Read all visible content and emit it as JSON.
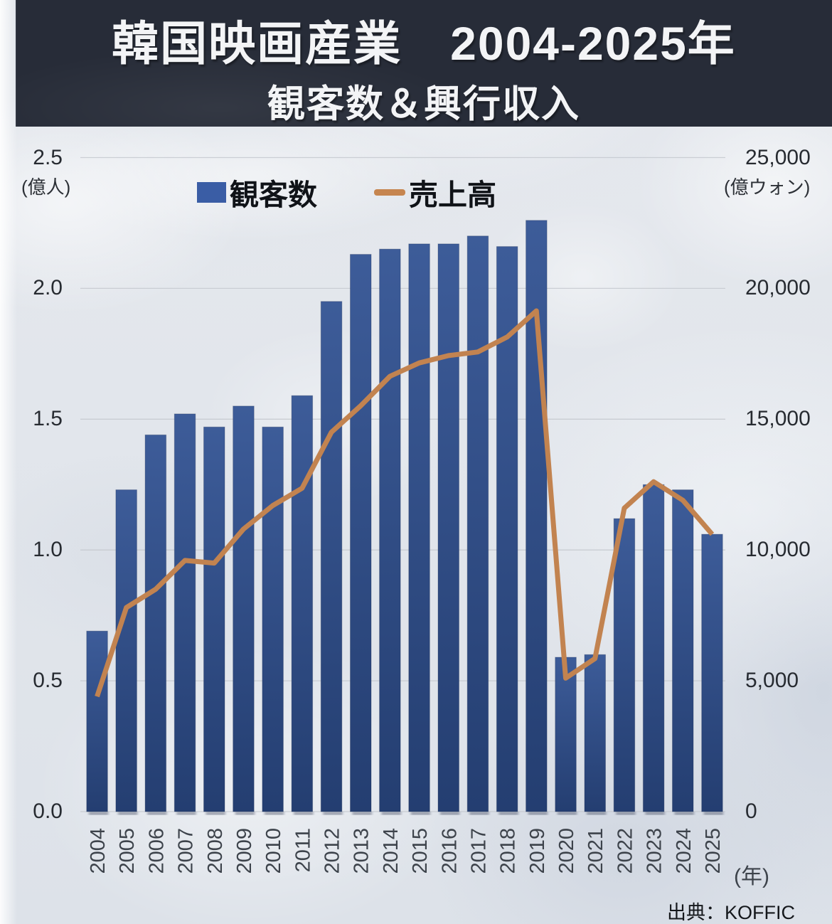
{
  "header": {
    "title_line1": "韓国映画産業　2004-2025年",
    "title_line2": "観客数＆興行収入"
  },
  "legend": {
    "bar_label": "観客数",
    "line_label": "売上高"
  },
  "axes": {
    "left": {
      "ticks": [
        "0.0",
        "0.5",
        "1.0",
        "1.5",
        "2.0",
        "2.5"
      ],
      "unit": "(億人)"
    },
    "right": {
      "ticks": [
        "0",
        "5,000",
        "10,000",
        "15,000",
        "20,000",
        "25,000"
      ],
      "unit": "(億ウォン)"
    },
    "x": {
      "unit": "(年)"
    }
  },
  "source": "出典：KOFFIC",
  "colors": {
    "bar_top": "#3d5c99",
    "bar_bottom": "#243e71",
    "line": "#c28350",
    "header_bg": "#272c38",
    "grid": "#c3c7cd"
  },
  "chart_data": {
    "type": "bar+line",
    "categories": [
      "2004",
      "2005",
      "2006",
      "2007",
      "2008",
      "2009",
      "2010",
      "2011",
      "2012",
      "2013",
      "2014",
      "2015",
      "2016",
      "2017",
      "2018",
      "2019",
      "2020",
      "2021",
      "2022",
      "2023",
      "2024",
      "2025"
    ],
    "series": [
      {
        "name": "観客数",
        "type": "bar",
        "axis": "left",
        "unit": "億人",
        "values": [
          0.69,
          1.23,
          1.44,
          1.52,
          1.47,
          1.55,
          1.47,
          1.59,
          1.95,
          2.13,
          2.15,
          2.17,
          2.17,
          2.2,
          2.16,
          2.26,
          0.59,
          0.6,
          1.12,
          1.25,
          1.23,
          1.06
        ]
      },
      {
        "name": "売上高",
        "type": "line",
        "axis": "right",
        "unit": "億ウォン",
        "values": [
          4400,
          7800,
          8500,
          9600,
          9500,
          10800,
          11700,
          12360,
          14500,
          15510,
          16640,
          17150,
          17430,
          17570,
          18140,
          19140,
          5100,
          5850,
          11600,
          12610,
          11900,
          10600
        ]
      }
    ],
    "left_ylim": [
      0,
      2.5
    ],
    "right_ylim": [
      0,
      25000
    ],
    "grid": true,
    "legend_position": "top",
    "title": "韓国映画産業 2004-2025年 観客数＆興行収入"
  }
}
